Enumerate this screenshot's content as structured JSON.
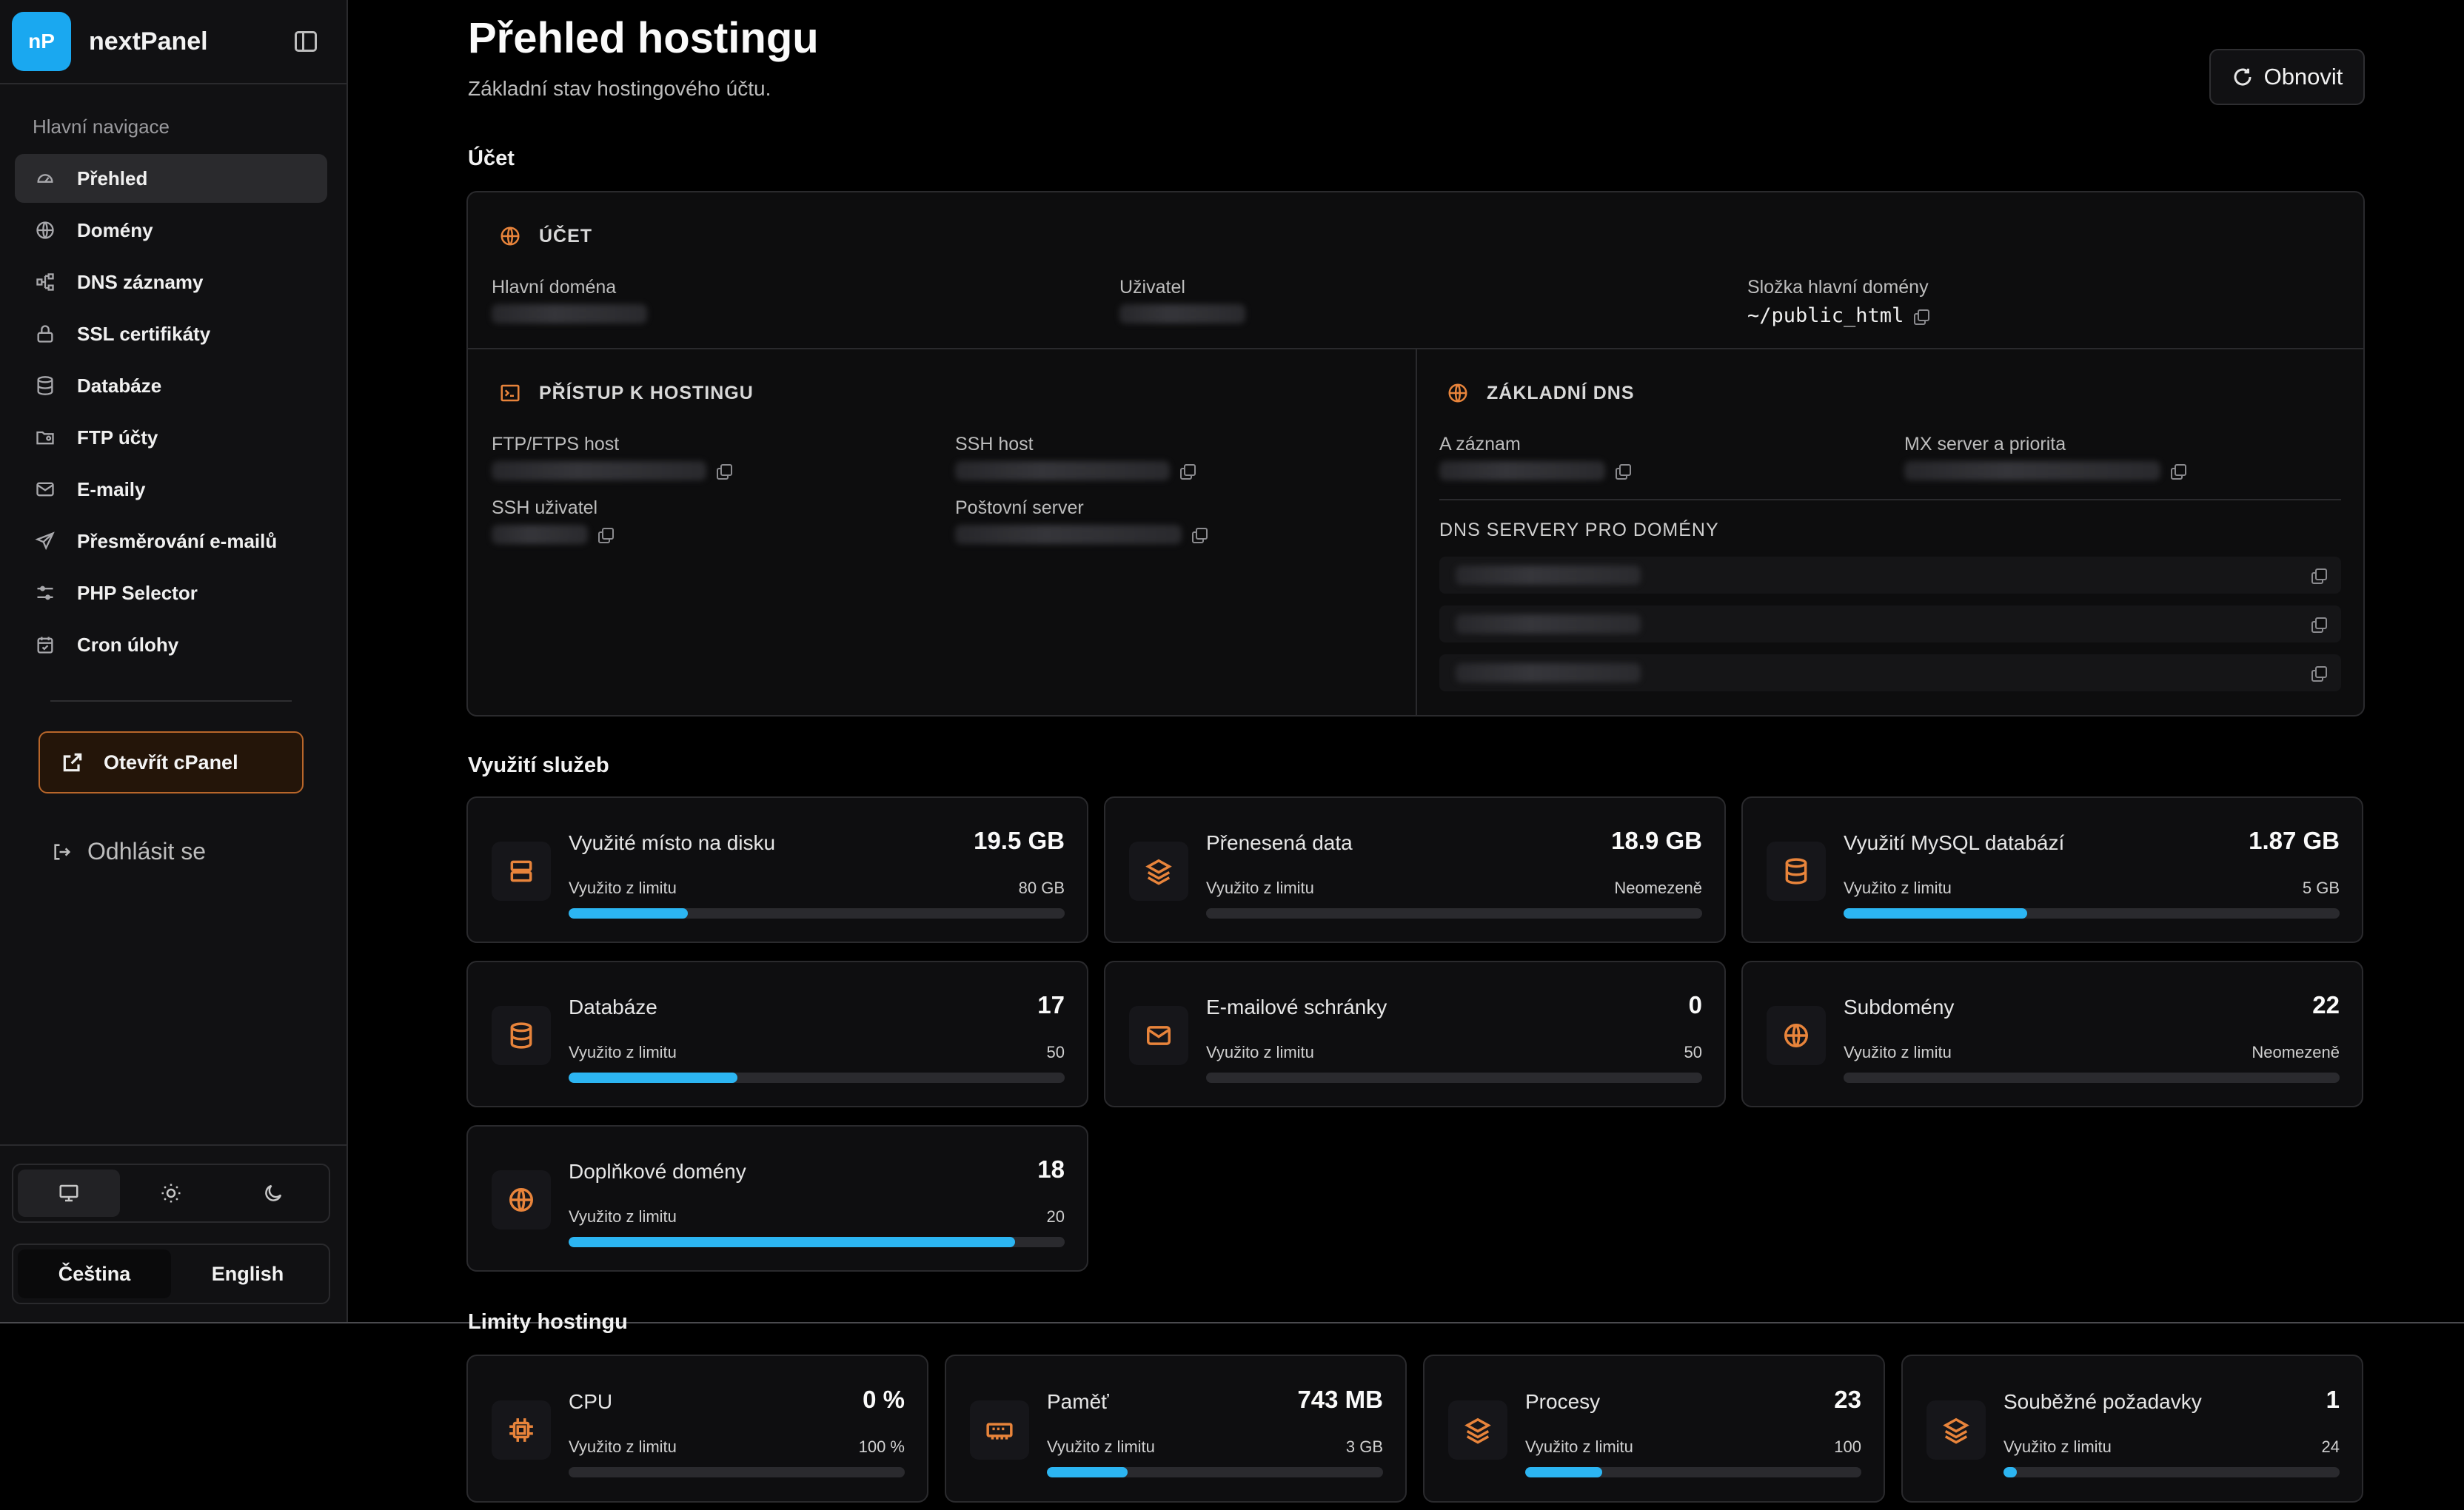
{
  "brand": {
    "logo": "nP",
    "name": "nextPanel"
  },
  "nav": {
    "heading": "Hlavní navigace",
    "items": [
      {
        "label": "Přehled",
        "icon": "gauge-icon",
        "active": true
      },
      {
        "label": "Domény",
        "icon": "globe-icon"
      },
      {
        "label": "DNS záznamy",
        "icon": "network-icon"
      },
      {
        "label": "SSL certifikáty",
        "icon": "lock-icon"
      },
      {
        "label": "Databáze",
        "icon": "database-icon"
      },
      {
        "label": "FTP účty",
        "icon": "folder-user-icon"
      },
      {
        "label": "E-maily",
        "icon": "mail-icon"
      },
      {
        "label": "Přesměrování e-mailů",
        "icon": "send-icon"
      },
      {
        "label": "PHP Selector",
        "icon": "sliders-icon"
      },
      {
        "label": "Cron úlohy",
        "icon": "calendar-check-icon"
      }
    ],
    "cpanel": "Otevřít cPanel",
    "logout": "Odhlásit se"
  },
  "theme": {
    "options": [
      "monitor-icon",
      "sun-icon",
      "moon-icon"
    ],
    "active": 0
  },
  "lang": {
    "cs": "Čeština",
    "en": "English"
  },
  "page": {
    "title": "Přehled hostingu",
    "subtitle": "Základní stav hostingového účtu.",
    "refresh": "Obnovit"
  },
  "account": {
    "section": "Účet",
    "head": "ÚČET",
    "main_domain_label": "Hlavní doména",
    "user_label": "Uživatel",
    "folder_label": "Složka hlavní domény",
    "folder_value": "~/public_html"
  },
  "access": {
    "head": "PŘÍSTUP K HOSTINGU",
    "ftp_label": "FTP/FTPS host",
    "ssh_host_label": "SSH host",
    "ssh_user_label": "SSH uživatel",
    "mail_label": "Poštovní server"
  },
  "dns": {
    "head": "ZÁKLADNÍ DNS",
    "a_label": "A záznam",
    "mx_label": "MX server a priorita",
    "servers_title": "DNS SERVERY PRO DOMÉNY"
  },
  "usage": {
    "section": "Využití služeb",
    "sub": "Využito z limitu",
    "cards": [
      {
        "label": "Využité místo na disku",
        "value": "19.5 GB",
        "limit": "80 GB",
        "fraction": 0.24,
        "icon": "server-icon"
      },
      {
        "label": "Přenesená data",
        "value": "18.9 GB",
        "limit": "Neomezeně",
        "fraction": 0,
        "icon": "layers-icon"
      },
      {
        "label": "Využití MySQL databází",
        "value": "1.87 GB",
        "limit": "5 GB",
        "fraction": 0.37,
        "icon": "database-icon"
      },
      {
        "label": "Databáze",
        "value": "17",
        "limit": "50",
        "fraction": 0.34,
        "icon": "database-icon"
      },
      {
        "label": "E-mailové schránky",
        "value": "0",
        "limit": "50",
        "fraction": 0,
        "icon": "mail-icon"
      },
      {
        "label": "Subdomény",
        "value": "22",
        "limit": "Neomezeně",
        "fraction": 0,
        "icon": "globe-icon"
      },
      {
        "label": "Doplňkové domény",
        "value": "18",
        "limit": "20",
        "fraction": 0.9,
        "icon": "globe-icon"
      }
    ]
  },
  "limits": {
    "section": "Limity hostingu",
    "cards": [
      {
        "label": "CPU",
        "value": "0 %",
        "limit": "100 %",
        "fraction": 0,
        "icon": "cpu-icon"
      },
      {
        "label": "Paměť",
        "value": "743 MB",
        "limit": "3 GB",
        "fraction": 0.24,
        "icon": "memory-icon"
      },
      {
        "label": "Procesy",
        "value": "23",
        "limit": "100",
        "fraction": 0.23,
        "icon": "layers-icon"
      },
      {
        "label": "Souběžné požadavky",
        "value": "1",
        "limit": "24",
        "fraction": 0.04,
        "icon": "layers-icon"
      }
    ]
  },
  "colors": {
    "accent": "#2cb5f2",
    "icon": "#e8843b",
    "brand": "#1aa8f0"
  }
}
